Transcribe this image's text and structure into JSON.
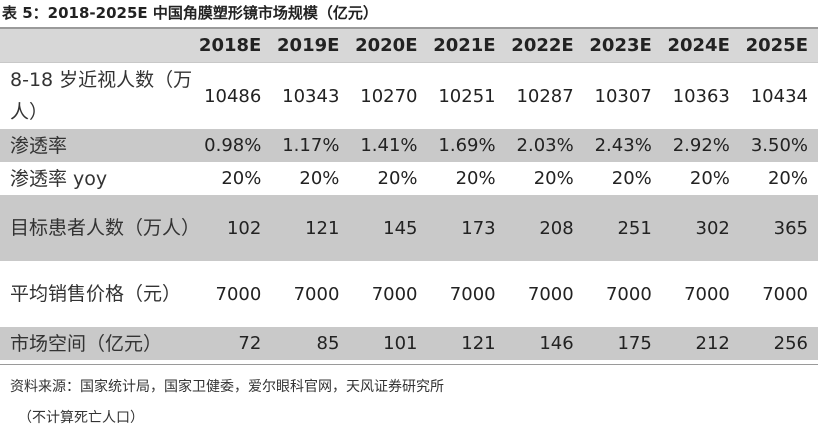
{
  "title": "表 5：2018-2025E 中国角膜塑形镜市场规模（亿元）",
  "columns": [
    "2018E",
    "2019E",
    "2020E",
    "2021E",
    "2022E",
    "2023E",
    "2024E",
    "2025E"
  ],
  "rows": [
    {
      "label": "8-18 岁近视人数（万人）",
      "values": [
        "10486",
        "10343",
        "10270",
        "10251",
        "10287",
        "10307",
        "10363",
        "10434"
      ]
    },
    {
      "label": "渗透率",
      "values": [
        "0.98%",
        "1.17%",
        "1.41%",
        "1.69%",
        "2.03%",
        "2.43%",
        "2.92%",
        "3.50%"
      ]
    },
    {
      "label": "渗透率 yoy",
      "values": [
        "20%",
        "20%",
        "20%",
        "20%",
        "20%",
        "20%",
        "20%",
        "20%"
      ]
    },
    {
      "label": "目标患者人数（万人）",
      "values": [
        "102",
        "121",
        "145",
        "173",
        "208",
        "251",
        "302",
        "365"
      ]
    },
    {
      "label": "平均销售价格（元）",
      "values": [
        "7000",
        "7000",
        "7000",
        "7000",
        "7000",
        "7000",
        "7000",
        "7000"
      ]
    },
    {
      "label": "市场空间（亿元）",
      "values": [
        "72",
        "85",
        "101",
        "121",
        "146",
        "175",
        "212",
        "256"
      ]
    }
  ],
  "source": "资料来源：国家统计局，国家卫健委，爱尔眼科官网，天风证券研究所",
  "note": "（不计算死亡人口）",
  "colors": {
    "header_bg": "#d7d7d7",
    "shaded_row_bg": "#c9c9c9",
    "rule": "#9a9a9a"
  }
}
